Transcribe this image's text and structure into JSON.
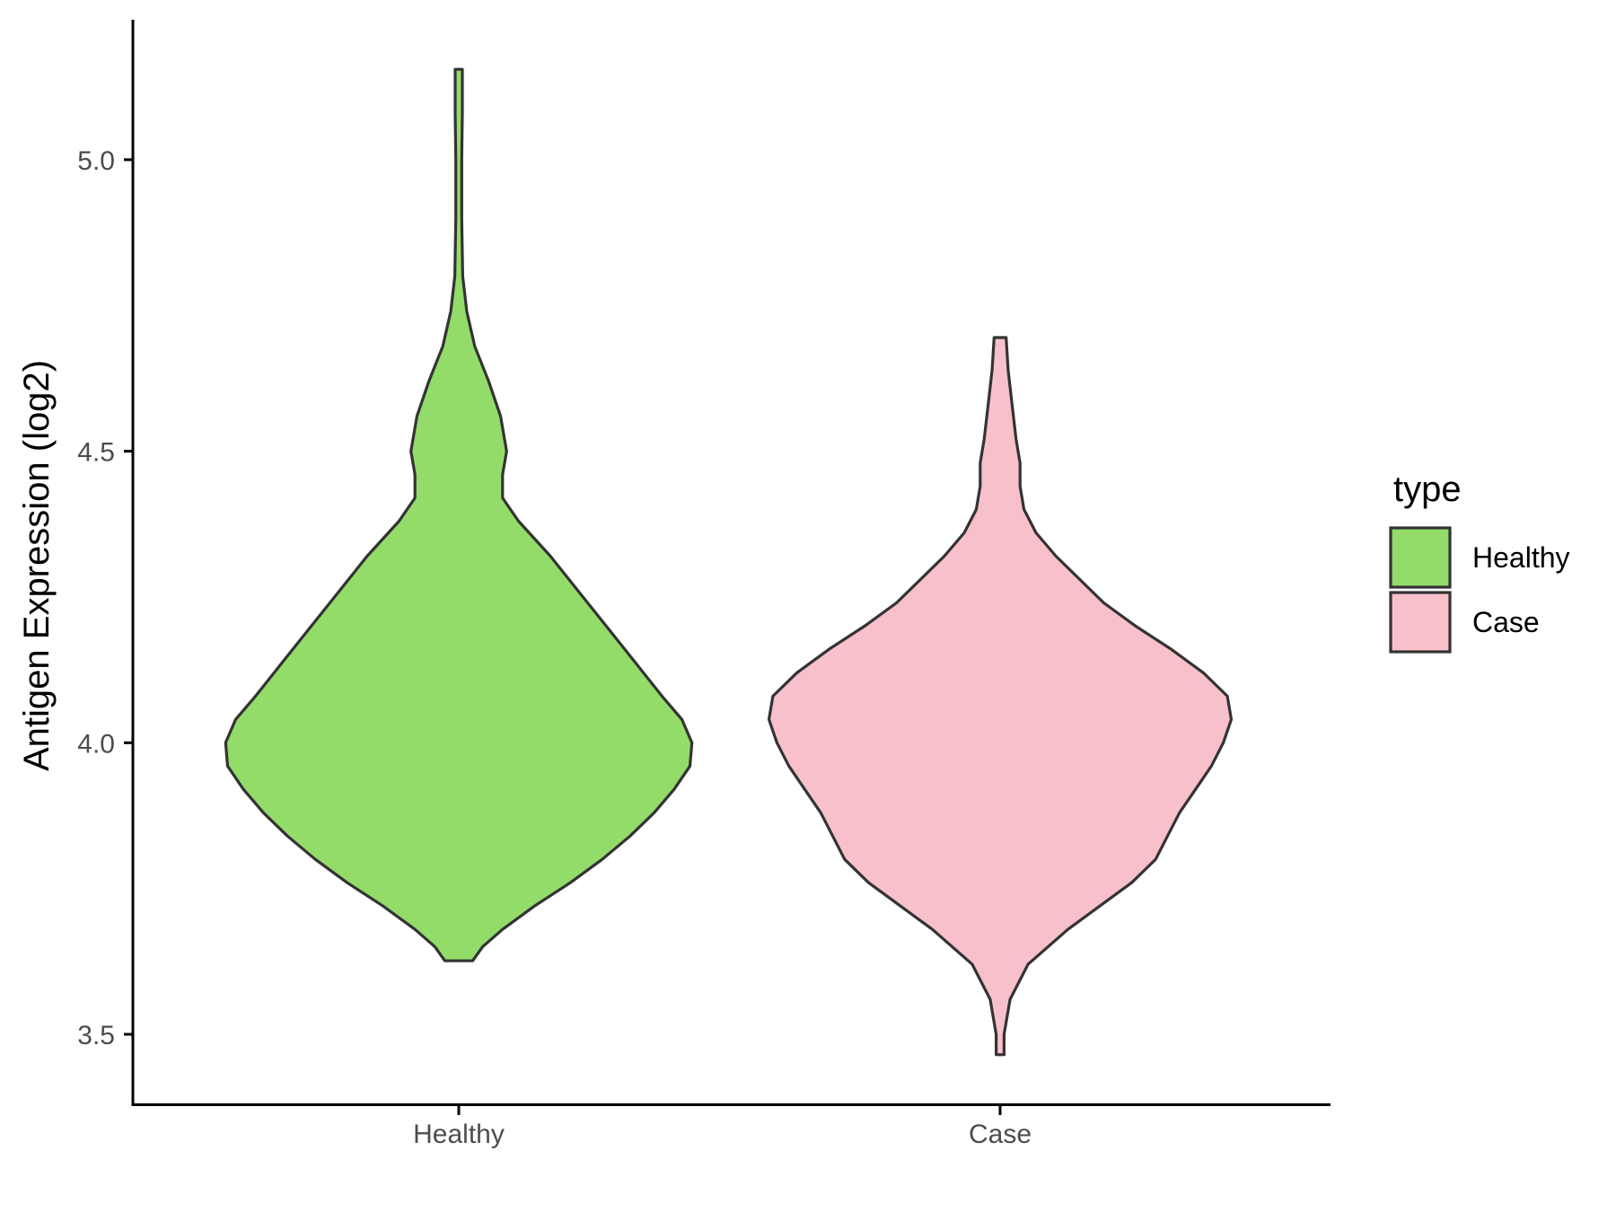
{
  "chart_data": {
    "type": "violin",
    "ylabel": "Antigen Expression (log2)",
    "y_ticks": [
      "3.5",
      "4.0",
      "4.5",
      "5.0"
    ],
    "ylim": [
      3.38,
      5.24
    ],
    "categories": [
      "Healthy",
      "Case"
    ],
    "legend": {
      "title": "type",
      "placement": "right",
      "entries": [
        "Healthy",
        "Case"
      ]
    },
    "grid": false,
    "series": [
      {
        "name": "Healthy",
        "color": "#93dc6a",
        "min": 3.626,
        "max": 5.155,
        "density": [
          [
            3.626,
            0.07
          ],
          [
            3.65,
            0.12
          ],
          [
            3.68,
            0.22
          ],
          [
            3.72,
            0.38
          ],
          [
            3.76,
            0.56
          ],
          [
            3.8,
            0.72
          ],
          [
            3.84,
            0.86
          ],
          [
            3.88,
            0.98
          ],
          [
            3.92,
            1.08
          ],
          [
            3.96,
            1.16
          ],
          [
            4.0,
            1.17
          ],
          [
            4.04,
            1.12
          ],
          [
            4.08,
            1.02
          ],
          [
            4.14,
            0.88
          ],
          [
            4.2,
            0.74
          ],
          [
            4.26,
            0.6
          ],
          [
            4.32,
            0.46
          ],
          [
            4.38,
            0.3
          ],
          [
            4.42,
            0.22
          ],
          [
            4.46,
            0.22
          ],
          [
            4.5,
            0.24
          ],
          [
            4.56,
            0.21
          ],
          [
            4.62,
            0.15
          ],
          [
            4.68,
            0.08
          ],
          [
            4.74,
            0.04
          ],
          [
            4.8,
            0.02
          ],
          [
            4.9,
            0.015
          ],
          [
            5.0,
            0.015
          ],
          [
            5.08,
            0.018
          ],
          [
            5.155,
            0.018
          ]
        ]
      },
      {
        "name": "Case",
        "color": "#f8c0cb",
        "min": 3.465,
        "max": 4.695,
        "density": [
          [
            3.465,
            0.02
          ],
          [
            3.5,
            0.02
          ],
          [
            3.56,
            0.05
          ],
          [
            3.62,
            0.14
          ],
          [
            3.68,
            0.34
          ],
          [
            3.72,
            0.5
          ],
          [
            3.76,
            0.66
          ],
          [
            3.8,
            0.78
          ],
          [
            3.84,
            0.84
          ],
          [
            3.88,
            0.9
          ],
          [
            3.92,
            0.98
          ],
          [
            3.96,
            1.06
          ],
          [
            4.0,
            1.12
          ],
          [
            4.04,
            1.16
          ],
          [
            4.08,
            1.14
          ],
          [
            4.12,
            1.02
          ],
          [
            4.16,
            0.86
          ],
          [
            4.2,
            0.68
          ],
          [
            4.24,
            0.52
          ],
          [
            4.28,
            0.4
          ],
          [
            4.32,
            0.28
          ],
          [
            4.36,
            0.18
          ],
          [
            4.4,
            0.12
          ],
          [
            4.44,
            0.1
          ],
          [
            4.48,
            0.1
          ],
          [
            4.52,
            0.08
          ],
          [
            4.58,
            0.06
          ],
          [
            4.64,
            0.04
          ],
          [
            4.695,
            0.03
          ]
        ]
      }
    ],
    "outline_color": "#333333"
  }
}
